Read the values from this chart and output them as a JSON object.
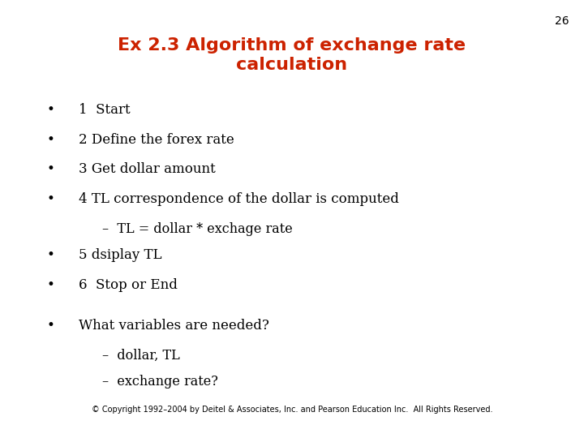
{
  "title_line1": "Ex 2.3 Algorithm of exchange rate",
  "title_line2": "calculation",
  "title_color": "#cc2200",
  "title_fontsize": 16,
  "background_color": "#ffffff",
  "page_number": "26",
  "page_number_color": "#000000",
  "page_number_fontsize": 10,
  "bullet_color": "#000000",
  "bullet_fontsize": 12,
  "sub_fontsize": 11.5,
  "bullets": [
    {
      "level": 0,
      "text": "1  Start"
    },
    {
      "level": 0,
      "text": "2 Define the forex rate"
    },
    {
      "level": 0,
      "text": "3 Get dollar amount"
    },
    {
      "level": 0,
      "text": "4 TL correspondence of the dollar is computed"
    },
    {
      "level": 1,
      "text": "–  TL = dollar * exchage rate"
    },
    {
      "level": 0,
      "text": "5 dsiplay TL"
    },
    {
      "level": 0,
      "text": "6  Stop or End"
    }
  ],
  "extra_bullets": [
    {
      "level": 0,
      "text": "What variables are needed?"
    },
    {
      "level": 1,
      "text": "–  dollar, TL"
    },
    {
      "level": 1,
      "text": "–  exchange rate?"
    }
  ],
  "footer_text": "© Copyright 1992–2004 by Deitel & Associates, Inc. and Pearson Education Inc.  All Rights Reserved.",
  "footer_fontsize": 7,
  "footer_color": "#000000",
  "nav_left_color": "#cc0000",
  "nav_right_color": "#cc0000"
}
